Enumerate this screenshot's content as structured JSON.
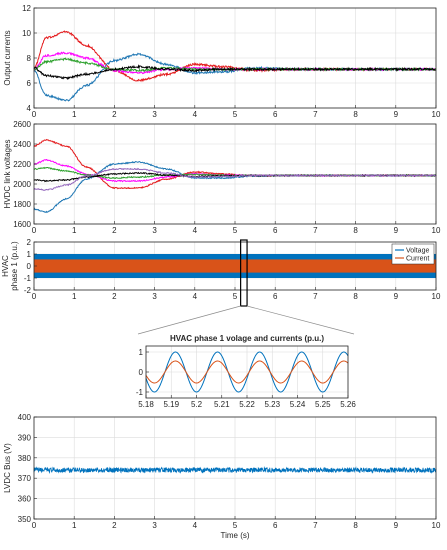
{
  "chart_data": [
    {
      "type": "line",
      "ylabel": "Output currents",
      "xlim": [
        0,
        10
      ],
      "ylim": [
        4,
        12
      ],
      "xticks": [
        0,
        1,
        2,
        3,
        4,
        5,
        6,
        7,
        8,
        9,
        10
      ],
      "yticks": [
        4,
        6,
        8,
        10,
        12
      ],
      "grid": true,
      "settle_value": 7.1,
      "series": [
        {
          "color": "#e41a1c",
          "x": [
            0,
            0.3,
            0.8,
            1.3,
            2.0,
            2.6,
            3.3,
            4.0,
            4.7,
            5.5,
            6.5,
            8,
            10
          ],
          "y": [
            7.2,
            9.6,
            10.1,
            9.0,
            7.0,
            6.2,
            6.7,
            7.5,
            7.3,
            7.0,
            7.1,
            7.1,
            7.1
          ]
        },
        {
          "color": "#1f77b4",
          "x": [
            0,
            0.3,
            0.8,
            1.3,
            2.0,
            2.6,
            3.3,
            4.0,
            4.7,
            5.5,
            6.5,
            8,
            10
          ],
          "y": [
            7.0,
            5.0,
            4.6,
            5.8,
            7.8,
            8.3,
            7.5,
            6.8,
            6.9,
            7.2,
            7.1,
            7.1,
            7.1
          ]
        },
        {
          "color": "#ff00ff",
          "x": [
            0,
            0.3,
            0.8,
            1.3,
            2.0,
            2.6,
            3.3,
            4.0,
            4.7,
            5.5,
            6.5,
            8,
            10
          ],
          "y": [
            7.1,
            8.2,
            8.4,
            8.0,
            7.0,
            6.8,
            7.1,
            7.2,
            7.1,
            7.1,
            7.1,
            7.1,
            7.1
          ]
        },
        {
          "color": "#2ca02c",
          "x": [
            0,
            0.3,
            0.8,
            1.3,
            2.0,
            2.6,
            3.3,
            4.0,
            4.7,
            5.5,
            6.5,
            8,
            10
          ],
          "y": [
            7.1,
            7.7,
            7.9,
            7.6,
            7.1,
            7.0,
            7.2,
            7.1,
            7.1,
            7.1,
            7.1,
            7.1,
            7.1
          ]
        },
        {
          "color": "#000000",
          "x": [
            0,
            0.3,
            0.8,
            1.3,
            2.0,
            2.6,
            3.3,
            4.0,
            4.7,
            5.5,
            6.5,
            8,
            10
          ],
          "y": [
            7.2,
            6.6,
            6.4,
            6.7,
            7.1,
            7.3,
            7.1,
            7.0,
            7.1,
            7.1,
            7.1,
            7.1,
            7.1
          ]
        }
      ]
    },
    {
      "type": "line",
      "ylabel": "HVDC link voltages",
      "xlim": [
        0,
        10
      ],
      "ylim": [
        1600,
        2600
      ],
      "xticks": [
        0,
        1,
        2,
        3,
        4,
        5,
        6,
        7,
        8,
        9,
        10
      ],
      "yticks": [
        1600,
        1800,
        2000,
        2200,
        2400,
        2600
      ],
      "grid": true,
      "series": [
        {
          "color": "#e41a1c",
          "x": [
            0,
            0.3,
            0.8,
            1.3,
            2.0,
            2.6,
            3.3,
            4.0,
            4.7,
            5.5,
            6.5,
            8,
            10
          ],
          "y": [
            2380,
            2440,
            2380,
            2170,
            1960,
            1960,
            2050,
            2120,
            2100,
            2080,
            2085,
            2085,
            2085
          ]
        },
        {
          "color": "#1f77b4",
          "x": [
            0,
            0.3,
            0.8,
            1.3,
            2.0,
            2.6,
            3.3,
            4.0,
            4.7,
            5.5,
            6.5,
            8,
            10
          ],
          "y": [
            1750,
            1720,
            1850,
            2050,
            2200,
            2220,
            2150,
            2060,
            2060,
            2080,
            2085,
            2085,
            2085
          ]
        },
        {
          "color": "#ff00ff",
          "x": [
            0,
            0.3,
            0.8,
            1.3,
            2.0,
            2.6,
            3.3,
            4.0,
            4.7,
            5.5,
            6.5,
            8,
            10
          ],
          "y": [
            2200,
            2240,
            2180,
            2100,
            2030,
            2030,
            2070,
            2100,
            2090,
            2085,
            2085,
            2085,
            2085
          ]
        },
        {
          "color": "#2ca02c",
          "x": [
            0,
            0.3,
            0.8,
            1.3,
            2.0,
            2.6,
            3.3,
            4.0,
            4.7,
            5.5,
            6.5,
            8,
            10
          ],
          "y": [
            2150,
            2160,
            2130,
            2090,
            2060,
            2070,
            2090,
            2095,
            2088,
            2085,
            2085,
            2085,
            2085
          ]
        },
        {
          "color": "#000000",
          "x": [
            0,
            0.3,
            0.8,
            1.3,
            2.0,
            2.6,
            3.3,
            4.0,
            4.7,
            5.5,
            6.5,
            8,
            10
          ],
          "y": [
            2040,
            2030,
            2040,
            2070,
            2100,
            2110,
            2090,
            2075,
            2082,
            2085,
            2085,
            2085,
            2085
          ]
        },
        {
          "color": "#9467bd",
          "x": [
            0,
            0.3,
            0.8,
            1.3,
            2.0,
            2.6,
            3.3,
            4.0,
            4.7,
            5.5,
            6.5,
            8,
            10
          ],
          "y": [
            1950,
            1940,
            1990,
            2080,
            2150,
            2150,
            2110,
            2070,
            2075,
            2085,
            2085,
            2085,
            2085
          ]
        }
      ]
    },
    {
      "type": "line",
      "ylabel": "HVAC phase 1 (p.u.)",
      "xlim": [
        0,
        10
      ],
      "ylim": [
        -2,
        2
      ],
      "xticks": [
        0,
        1,
        2,
        3,
        4,
        5,
        6,
        7,
        8,
        9,
        10
      ],
      "yticks": [
        -2,
        -1,
        0,
        1,
        2
      ],
      "grid": true,
      "legend": "top-right",
      "zoom_window": [
        5.18,
        5.26
      ],
      "series": [
        {
          "name": "Voltage",
          "color": "#0072bd",
          "amplitude": 1.0,
          "frequency_hz": 60
        },
        {
          "name": "Current",
          "color": "#d95319",
          "amplitude": 0.55,
          "frequency_hz": 60
        }
      ]
    },
    {
      "type": "line",
      "title": "HVAC phase 1 volage and currents (p.u.)",
      "xlim": [
        5.18,
        5.26
      ],
      "ylim": [
        -1.3,
        1.3
      ],
      "xticks": [
        "5.18",
        "5.19",
        "5.2",
        "5.21",
        "5.22",
        "5.23",
        "5.24",
        "5.25",
        "5.26"
      ],
      "yticks": [
        -1,
        0,
        1
      ],
      "grid": true,
      "series": [
        {
          "name": "Voltage",
          "color": "#0072bd",
          "amplitude": 1.0,
          "frequency_hz": 60,
          "phase_deg": 270
        },
        {
          "name": "Current",
          "color": "#d95319",
          "amplitude": 0.55,
          "frequency_hz": 60,
          "phase_deg": 270
        }
      ]
    },
    {
      "type": "line",
      "ylabel": "LVDC Bus (V)",
      "xlabel": "Time (s)",
      "xlim": [
        0,
        10
      ],
      "ylim": [
        350,
        400
      ],
      "xticks": [
        0,
        1,
        2,
        3,
        4,
        5,
        6,
        7,
        8,
        9,
        10
      ],
      "yticks": [
        350,
        360,
        370,
        380,
        390,
        400
      ],
      "grid": true,
      "series": [
        {
          "color": "#0072bd",
          "mean": 374,
          "ripple": 1.2
        }
      ]
    }
  ]
}
